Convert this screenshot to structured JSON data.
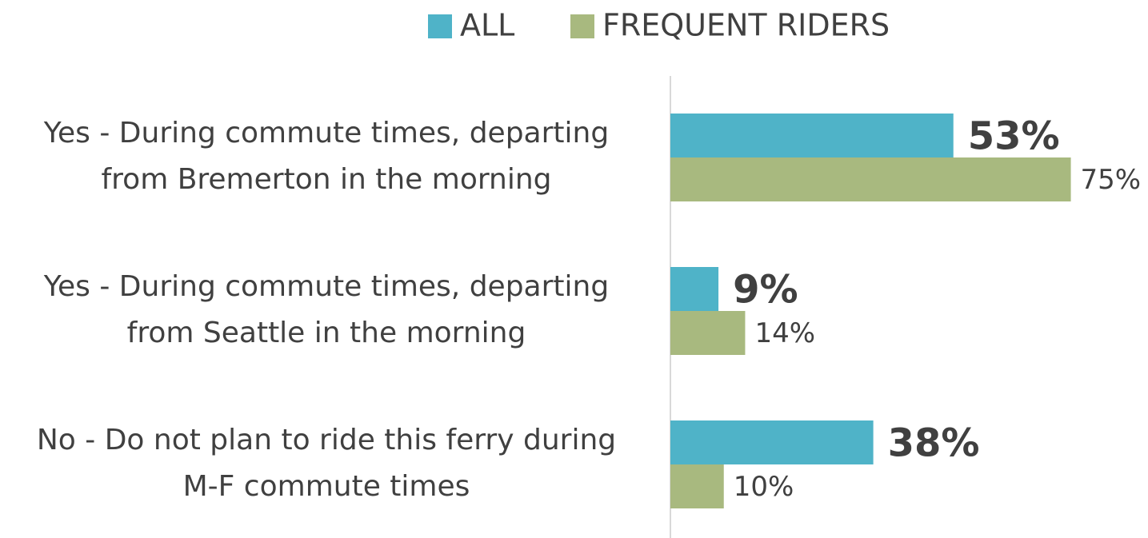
{
  "chart_data": {
    "type": "bar",
    "orientation": "horizontal",
    "categories": [
      "Yes -  During commute times, departing\nfrom Bremerton in the morning",
      "Yes -  During commute times, departing\nfrom Seattle in the morning",
      "No - Do not plan to ride this ferry during\nM-F commute times"
    ],
    "series": [
      {
        "name": "ALL",
        "color": "#4fb3c8",
        "values": [
          53,
          9,
          38
        ],
        "value_labels": [
          "53%",
          "9%",
          "38%"
        ]
      },
      {
        "name": "FREQUENT RIDERS",
        "color": "#a8b97f",
        "values": [
          75,
          14,
          10
        ],
        "value_labels": [
          "75%",
          "14%",
          "10%"
        ]
      }
    ],
    "xlim": [
      0,
      89
    ],
    "legend": "top"
  }
}
